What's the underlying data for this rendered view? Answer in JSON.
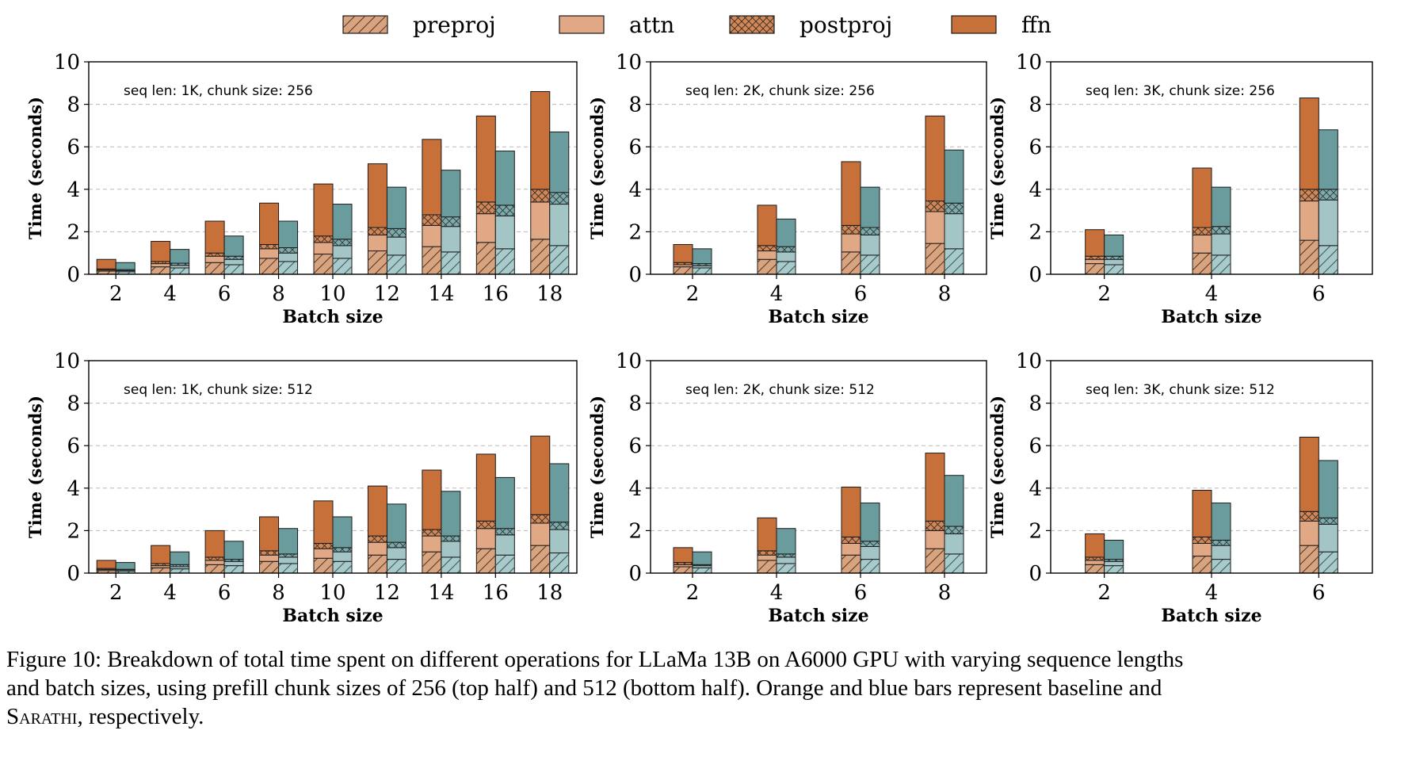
{
  "legend": [
    {
      "label": "preproj",
      "pattern": "hatch"
    },
    {
      "label": "attn",
      "pattern": "solid"
    },
    {
      "label": "postproj",
      "pattern": "crosshatch"
    },
    {
      "label": "ffn",
      "pattern": "solid"
    }
  ],
  "colors": {
    "baseline": [
      "#d8a47f",
      "#e0a885",
      "#d0885a",
      "#c8703a"
    ],
    "sarathi": [
      "#a8cacb",
      "#a3c5c6",
      "#7fa9aa",
      "#6a9c9d"
    ],
    "edge": "#1a1a1a",
    "grid": "#b8b8b8"
  },
  "caption": {
    "line1": "Figure 10: Breakdown of total time spent on different operations for LLaMa 13B on A6000 GPU with varying sequence lengths",
    "line2": "and batch sizes, using prefill chunk sizes of 256 (top half) and 512 (bottom half). Orange and blue bars represent baseline and",
    "line3_name": "Sarathi",
    "line3_rest": ", respectively."
  },
  "chart_data": [
    {
      "type": "bar",
      "stacked": true,
      "annotation": "seq len:  1K, chunk size: 256",
      "xlabel": "Batch size",
      "ylabel": "Time (seconds)",
      "ylim": [
        0,
        10
      ],
      "yticks": [
        0,
        2,
        4,
        6,
        8,
        10
      ],
      "grid": true,
      "categories": [
        "2",
        "4",
        "6",
        "8",
        "10",
        "12",
        "14",
        "16",
        "18"
      ],
      "series": [
        {
          "group": "baseline",
          "name": "preproj",
          "values": [
            0.15,
            0.35,
            0.55,
            0.75,
            0.95,
            1.1,
            1.3,
            1.5,
            1.65
          ]
        },
        {
          "group": "baseline",
          "name": "attn",
          "values": [
            0.05,
            0.15,
            0.3,
            0.45,
            0.55,
            0.75,
            1.0,
            1.35,
            1.75
          ]
        },
        {
          "group": "baseline",
          "name": "postproj",
          "values": [
            0.05,
            0.1,
            0.15,
            0.2,
            0.3,
            0.35,
            0.5,
            0.55,
            0.6
          ]
        },
        {
          "group": "baseline",
          "name": "ffn",
          "values": [
            0.45,
            0.95,
            1.5,
            1.95,
            2.45,
            3.0,
            3.55,
            4.05,
            4.6
          ]
        },
        {
          "group": "sarathi",
          "name": "preproj",
          "values": [
            0.12,
            0.3,
            0.45,
            0.6,
            0.75,
            0.9,
            1.05,
            1.2,
            1.35
          ]
        },
        {
          "group": "sarathi",
          "name": "attn",
          "values": [
            0.05,
            0.12,
            0.25,
            0.4,
            0.6,
            0.85,
            1.2,
            1.55,
            1.95
          ]
        },
        {
          "group": "sarathi",
          "name": "postproj",
          "values": [
            0.05,
            0.1,
            0.15,
            0.25,
            0.3,
            0.4,
            0.45,
            0.5,
            0.55
          ]
        },
        {
          "group": "sarathi",
          "name": "ffn",
          "values": [
            0.33,
            0.65,
            0.95,
            1.25,
            1.65,
            1.95,
            2.2,
            2.55,
            2.85
          ]
        }
      ]
    },
    {
      "type": "bar",
      "stacked": true,
      "annotation": "seq len:  2K, chunk size: 256",
      "xlabel": "Batch size",
      "ylabel": "Time (seconds)",
      "ylim": [
        0,
        10
      ],
      "yticks": [
        0,
        2,
        4,
        6,
        8,
        10
      ],
      "grid": true,
      "categories": [
        "2",
        "4",
        "6",
        "8"
      ],
      "series": [
        {
          "group": "baseline",
          "name": "preproj",
          "values": [
            0.35,
            0.7,
            1.05,
            1.45
          ]
        },
        {
          "group": "baseline",
          "name": "attn",
          "values": [
            0.1,
            0.4,
            0.85,
            1.5
          ]
        },
        {
          "group": "baseline",
          "name": "postproj",
          "values": [
            0.1,
            0.25,
            0.4,
            0.5
          ]
        },
        {
          "group": "baseline",
          "name": "ffn",
          "values": [
            0.85,
            1.9,
            3.0,
            4.0
          ]
        },
        {
          "group": "sarathi",
          "name": "preproj",
          "values": [
            0.3,
            0.6,
            0.9,
            1.2
          ]
        },
        {
          "group": "sarathi",
          "name": "attn",
          "values": [
            0.1,
            0.45,
            0.95,
            1.65
          ]
        },
        {
          "group": "sarathi",
          "name": "postproj",
          "values": [
            0.1,
            0.25,
            0.35,
            0.5
          ]
        },
        {
          "group": "sarathi",
          "name": "ffn",
          "values": [
            0.7,
            1.3,
            1.9,
            2.5
          ]
        }
      ]
    },
    {
      "type": "bar",
      "stacked": true,
      "annotation": "seq len:  3K, chunk size: 256",
      "xlabel": "Batch size",
      "ylabel": "Time (seconds)",
      "ylim": [
        0,
        10
      ],
      "yticks": [
        0,
        2,
        4,
        6,
        8,
        10
      ],
      "grid": true,
      "categories": [
        "2",
        "4",
        "6"
      ],
      "series": [
        {
          "group": "baseline",
          "name": "preproj",
          "values": [
            0.5,
            1.0,
            1.6
          ]
        },
        {
          "group": "baseline",
          "name": "attn",
          "values": [
            0.2,
            0.85,
            1.85
          ]
        },
        {
          "group": "baseline",
          "name": "postproj",
          "values": [
            0.15,
            0.35,
            0.55
          ]
        },
        {
          "group": "baseline",
          "name": "ffn",
          "values": [
            1.25,
            2.8,
            4.3
          ]
        },
        {
          "group": "sarathi",
          "name": "preproj",
          "values": [
            0.45,
            0.9,
            1.35
          ]
        },
        {
          "group": "sarathi",
          "name": "attn",
          "values": [
            0.25,
            1.0,
            2.15
          ]
        },
        {
          "group": "sarathi",
          "name": "postproj",
          "values": [
            0.15,
            0.35,
            0.5
          ]
        },
        {
          "group": "sarathi",
          "name": "ffn",
          "values": [
            1.0,
            1.85,
            2.8
          ]
        }
      ]
    },
    {
      "type": "bar",
      "stacked": true,
      "annotation": "seq len:  1K, chunk size: 512",
      "xlabel": "Batch size",
      "ylabel": "Time (seconds)",
      "ylim": [
        0,
        10
      ],
      "yticks": [
        0,
        2,
        4,
        6,
        8,
        10
      ],
      "grid": true,
      "categories": [
        "2",
        "4",
        "6",
        "8",
        "10",
        "12",
        "14",
        "16",
        "18"
      ],
      "series": [
        {
          "group": "baseline",
          "name": "preproj",
          "values": [
            0.12,
            0.25,
            0.4,
            0.55,
            0.7,
            0.85,
            1.0,
            1.15,
            1.3
          ]
        },
        {
          "group": "baseline",
          "name": "attn",
          "values": [
            0.05,
            0.1,
            0.2,
            0.3,
            0.45,
            0.6,
            0.75,
            0.95,
            1.05
          ]
        },
        {
          "group": "baseline",
          "name": "postproj",
          "values": [
            0.05,
            0.1,
            0.15,
            0.2,
            0.25,
            0.3,
            0.3,
            0.35,
            0.4
          ]
        },
        {
          "group": "baseline",
          "name": "ffn",
          "values": [
            0.38,
            0.85,
            1.25,
            1.6,
            2.0,
            2.35,
            2.8,
            3.15,
            3.7
          ]
        },
        {
          "group": "sarathi",
          "name": "preproj",
          "values": [
            0.1,
            0.2,
            0.35,
            0.45,
            0.55,
            0.65,
            0.75,
            0.85,
            0.95
          ]
        },
        {
          "group": "sarathi",
          "name": "attn",
          "values": [
            0.05,
            0.1,
            0.2,
            0.3,
            0.45,
            0.55,
            0.75,
            0.95,
            1.1
          ]
        },
        {
          "group": "sarathi",
          "name": "postproj",
          "values": [
            0.03,
            0.1,
            0.1,
            0.15,
            0.2,
            0.25,
            0.25,
            0.3,
            0.35
          ]
        },
        {
          "group": "sarathi",
          "name": "ffn",
          "values": [
            0.32,
            0.6,
            0.85,
            1.2,
            1.45,
            1.8,
            2.1,
            2.4,
            2.75
          ]
        }
      ]
    },
    {
      "type": "bar",
      "stacked": true,
      "annotation": "seq len:  2K, chunk size: 512",
      "xlabel": "Batch size",
      "ylabel": "Time (seconds)",
      "ylim": [
        0,
        10
      ],
      "yticks": [
        0,
        2,
        4,
        6,
        8,
        10
      ],
      "grid": true,
      "categories": [
        "2",
        "4",
        "6",
        "8"
      ],
      "series": [
        {
          "group": "baseline",
          "name": "preproj",
          "values": [
            0.3,
            0.6,
            0.85,
            1.15
          ]
        },
        {
          "group": "baseline",
          "name": "attn",
          "values": [
            0.1,
            0.25,
            0.55,
            0.85
          ]
        },
        {
          "group": "baseline",
          "name": "postproj",
          "values": [
            0.1,
            0.2,
            0.3,
            0.45
          ]
        },
        {
          "group": "baseline",
          "name": "ffn",
          "values": [
            0.7,
            1.55,
            2.35,
            3.2
          ]
        },
        {
          "group": "sarathi",
          "name": "preproj",
          "values": [
            0.25,
            0.45,
            0.65,
            0.9
          ]
        },
        {
          "group": "sarathi",
          "name": "attn",
          "values": [
            0.1,
            0.3,
            0.6,
            0.95
          ]
        },
        {
          "group": "sarathi",
          "name": "postproj",
          "values": [
            0.05,
            0.15,
            0.25,
            0.35
          ]
        },
        {
          "group": "sarathi",
          "name": "ffn",
          "values": [
            0.6,
            1.2,
            1.8,
            2.4
          ]
        }
      ]
    },
    {
      "type": "bar",
      "stacked": true,
      "annotation": "seq len:  3K, chunk size: 512",
      "xlabel": "Batch size",
      "ylabel": "Time (seconds)",
      "ylim": [
        0,
        10
      ],
      "yticks": [
        0,
        2,
        4,
        6,
        8,
        10
      ],
      "grid": true,
      "categories": [
        "2",
        "4",
        "6"
      ],
      "series": [
        {
          "group": "baseline",
          "name": "preproj",
          "values": [
            0.4,
            0.8,
            1.3
          ]
        },
        {
          "group": "baseline",
          "name": "attn",
          "values": [
            0.2,
            0.6,
            1.15
          ]
        },
        {
          "group": "baseline",
          "name": "postproj",
          "values": [
            0.15,
            0.3,
            0.45
          ]
        },
        {
          "group": "baseline",
          "name": "ffn",
          "values": [
            1.1,
            2.2,
            3.5
          ]
        },
        {
          "group": "sarathi",
          "name": "preproj",
          "values": [
            0.35,
            0.65,
            1.0
          ]
        },
        {
          "group": "sarathi",
          "name": "attn",
          "values": [
            0.2,
            0.65,
            1.3
          ]
        },
        {
          "group": "sarathi",
          "name": "postproj",
          "values": [
            0.1,
            0.25,
            0.3
          ]
        },
        {
          "group": "sarathi",
          "name": "ffn",
          "values": [
            0.9,
            1.75,
            2.7
          ]
        }
      ]
    }
  ]
}
